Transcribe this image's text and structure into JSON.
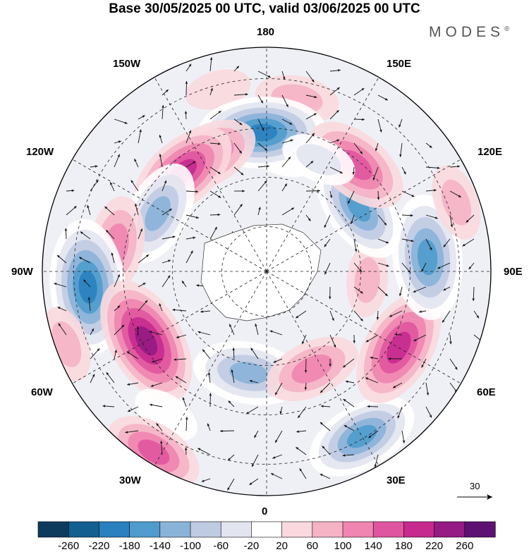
{
  "title": "Base 30/05/2025 00 UTC, valid 03/06/2025 00 UTC",
  "brand": {
    "text": "MODES",
    "mark": "®"
  },
  "longitude_labels": {
    "n": "180",
    "s": "0",
    "w": "90W",
    "e": "90E",
    "nw1": "150W",
    "nw2": "120W",
    "ne1": "150E",
    "ne2": "120E",
    "sw1": "60W",
    "sw2": "30W",
    "se1": "60E",
    "se2": "30E"
  },
  "reference_vector": {
    "label": "30",
    "icon": "arrow-right-icon"
  },
  "colorbar": {
    "labels": [
      "-260",
      "-220",
      "-180",
      "-140",
      "-100",
      "-60",
      "-20",
      "20",
      "60",
      "100",
      "140",
      "180",
      "220",
      "260"
    ],
    "colors": [
      "#0c3b5e",
      "#135f8f",
      "#2a7fbf",
      "#4f9ccc",
      "#8ab3d9",
      "#bfcbe3",
      "#e2e4f0",
      "#ffffff",
      "#f9d9de",
      "#f5b3c6",
      "#ef85b0",
      "#e0559f",
      "#c62a8f",
      "#951a83",
      "#5c1173"
    ]
  },
  "anomaly_centers": [
    {
      "lon": 170,
      "r": 0.78,
      "v": 80
    },
    {
      "lon": 170,
      "r": 0.52,
      "v": -40
    },
    {
      "lon": -165,
      "r": 0.84,
      "v": 30
    },
    {
      "lon": -178,
      "r": 0.62,
      "v": -210
    },
    {
      "lon": -152,
      "r": 0.58,
      "v": 150
    },
    {
      "lon": -140,
      "r": 0.58,
      "v": 170
    },
    {
      "lon": -118,
      "r": 0.55,
      "v": -150
    },
    {
      "lon": -100,
      "r": 0.68,
      "v": 120
    },
    {
      "lon": -85,
      "r": 0.8,
      "v": -230
    },
    {
      "lon": -60,
      "r": 0.62,
      "v": 220
    },
    {
      "lon": -35,
      "r": 0.78,
      "v": -40
    },
    {
      "lon": -32,
      "r": 0.95,
      "v": 130
    },
    {
      "lon": -10,
      "r": 0.46,
      "v": -160
    },
    {
      "lon": 30,
      "r": 0.85,
      "v": -170
    },
    {
      "lon": 25,
      "r": 0.48,
      "v": 120
    },
    {
      "lon": 60,
      "r": 0.68,
      "v": 190
    },
    {
      "lon": 95,
      "r": 0.72,
      "v": -200
    },
    {
      "lon": 85,
      "r": 0.45,
      "v": 50
    },
    {
      "lon": 125,
      "r": 0.5,
      "v": -170
    },
    {
      "lon": 140,
      "r": 0.62,
      "v": 160
    },
    {
      "lon": 155,
      "r": 0.55,
      "v": -60
    },
    {
      "lon": 110,
      "r": 0.9,
      "v": 60
    },
    {
      "lon": -70,
      "r": 0.95,
      "v": 60
    }
  ]
}
